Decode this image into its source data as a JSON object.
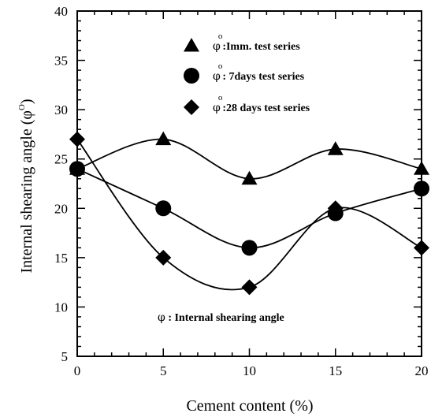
{
  "chart_data": {
    "type": "scatter",
    "xlabel": "Cement content (%)",
    "ylabel": {
      "text": "Internal shearing angle (",
      "symbol": "φ",
      "sup": "O",
      "close": ")"
    },
    "xlim": [
      0,
      20
    ],
    "ylim": [
      5,
      40
    ],
    "xticks": [
      0,
      5,
      10,
      15,
      20
    ],
    "yticks": [
      5,
      10,
      15,
      20,
      25,
      30,
      35,
      40
    ],
    "x_minor_step": 1,
    "y_minor_step": 1,
    "grid": false,
    "legend_position": "top-right",
    "series": [
      {
        "name": ":Imm. test series",
        "symbol": "φ",
        "sup": "o",
        "marker": "triangle",
        "x": [
          0,
          5,
          10,
          15,
          20
        ],
        "values": [
          24,
          27,
          23,
          26,
          24
        ]
      },
      {
        "name": ": 7days test series",
        "symbol": "φ",
        "sup": "o",
        "marker": "circle",
        "x": [
          0,
          5,
          10,
          15,
          20
        ],
        "values": [
          24,
          20,
          16,
          19.5,
          22
        ]
      },
      {
        "name": ":28 days test series",
        "symbol": "φ",
        "sup": "o",
        "marker": "diamond",
        "x": [
          0,
          5,
          10,
          15,
          20
        ],
        "values": [
          27,
          15,
          12,
          20,
          16
        ]
      }
    ],
    "annotation": {
      "symbol": "φ",
      "text": " : Internal shearing angle"
    }
  }
}
